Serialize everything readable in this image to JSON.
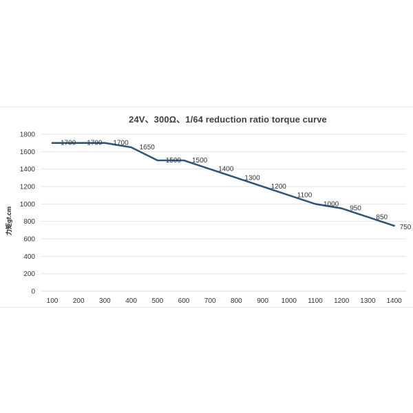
{
  "chart_data": {
    "type": "line",
    "title": "24V、300Ω、1/64 reduction ratio torque curve",
    "xlabel": "",
    "ylabel": "力矩gf.cm",
    "x": [
      100,
      200,
      300,
      400,
      500,
      600,
      700,
      800,
      900,
      1000,
      1100,
      1200,
      1300,
      1400
    ],
    "series": [
      {
        "values": [
          1700,
          1700,
          1700,
          1650,
          1500,
          1500,
          1400,
          1300,
          1200,
          1100,
          1000,
          950,
          850,
          750
        ],
        "labels": [
          "1700",
          "1700",
          "1700",
          "1650",
          "1500",
          "1500",
          "1400",
          "1300",
          "1200",
          "1100",
          "1000",
          "950",
          "850",
          "750"
        ]
      }
    ],
    "xticks": [
      "100",
      "200",
      "300",
      "400",
      "500",
      "600",
      "700",
      "800",
      "900",
      "1000",
      "1100",
      "1200",
      "1300",
      "1400"
    ],
    "yticks": [
      "0",
      "200",
      "400",
      "600",
      "800",
      "1000",
      "1200",
      "1400",
      "1600",
      "1800"
    ],
    "ylim": [
      0,
      1800
    ],
    "grid": true,
    "legend": "none",
    "colors": {
      "line": "#2e5678",
      "grid": "#e3e3e3",
      "axis": "#d9d9d9"
    }
  }
}
